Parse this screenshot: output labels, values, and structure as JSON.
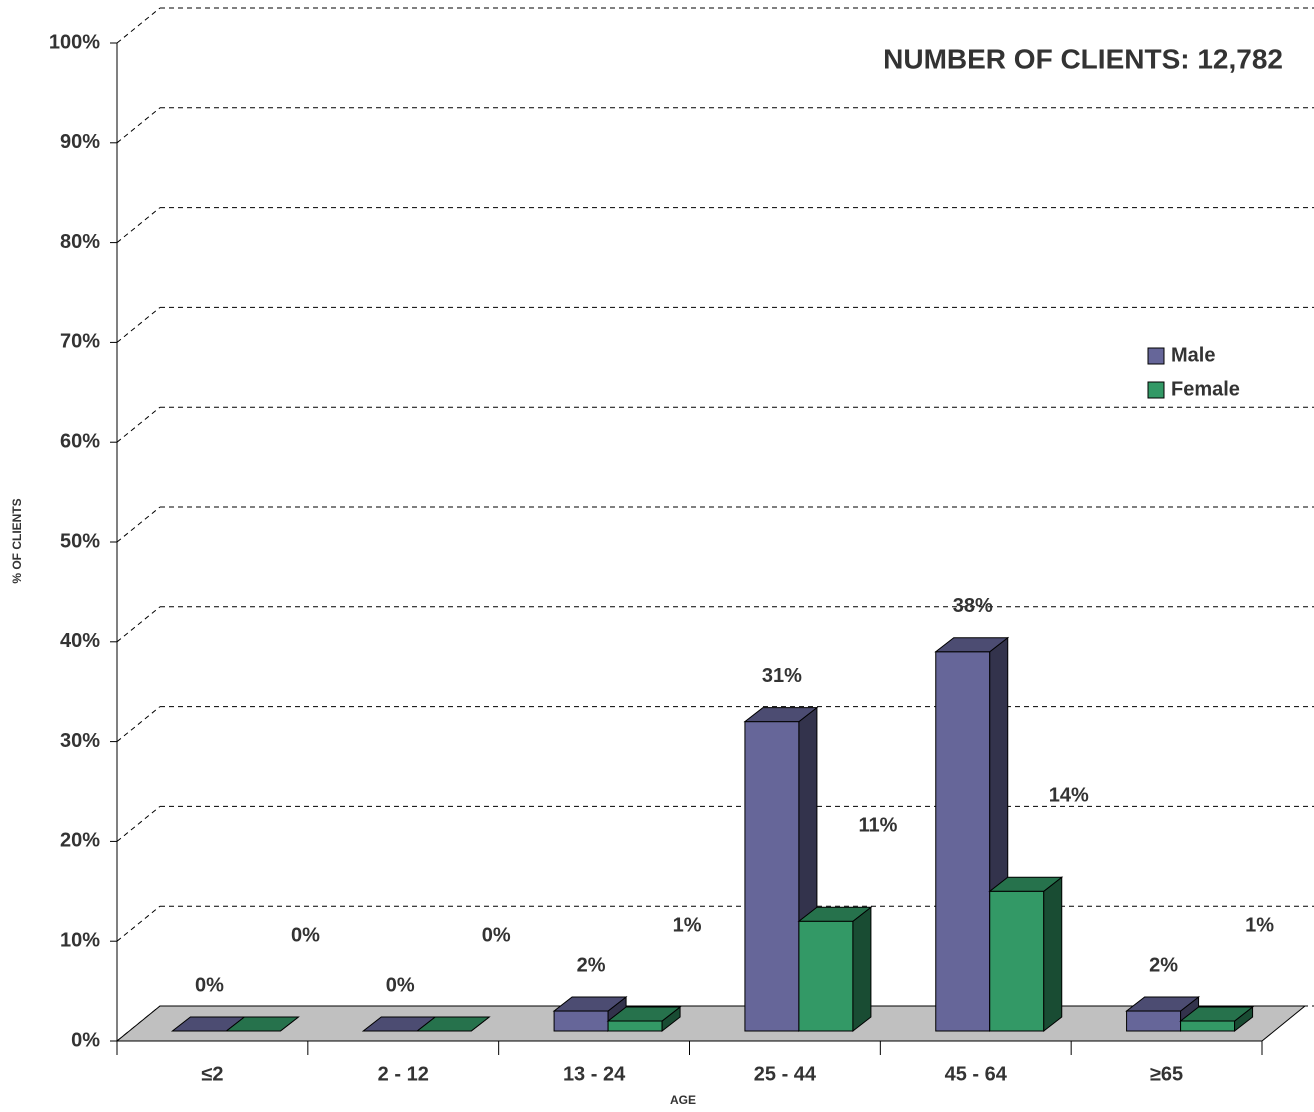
{
  "chart_data": {
    "type": "bar3d",
    "annotation": "NUMBER OF CLIENTS:  12,782",
    "y_label": "% OF CLIENTS",
    "x_label": "AGE",
    "categories": [
      "≤2",
      "2 - 12",
      "13 - 24",
      "25 - 44",
      "45 - 64",
      "≥65"
    ],
    "series": [
      {
        "name": "Male",
        "color": "#666699",
        "values": [
          0,
          0,
          2,
          31,
          38,
          2
        ],
        "value_labels": [
          "0%",
          "0%",
          "2%",
          "31%",
          "38%",
          "2%"
        ]
      },
      {
        "name": "Female",
        "color": "#339966",
        "values": [
          0,
          0,
          1,
          11,
          14,
          1
        ],
        "value_labels": [
          "0%",
          "0%",
          "1%",
          "11%",
          "14%",
          "1%"
        ]
      }
    ],
    "ylim": [
      0,
      100
    ],
    "yticks": [
      {
        "value": 0,
        "label": "0%"
      },
      {
        "value": 10,
        "label": "10%"
      },
      {
        "value": 20,
        "label": "20%"
      },
      {
        "value": 30,
        "label": "30%"
      },
      {
        "value": 40,
        "label": "40%"
      },
      {
        "value": 50,
        "label": "50%"
      },
      {
        "value": 60,
        "label": "60%"
      },
      {
        "value": 70,
        "label": "70%"
      },
      {
        "value": 80,
        "label": "80%"
      },
      {
        "value": 90,
        "label": "90%"
      },
      {
        "value": 100,
        "label": "100%"
      }
    ],
    "grid": true,
    "legend": "right"
  }
}
